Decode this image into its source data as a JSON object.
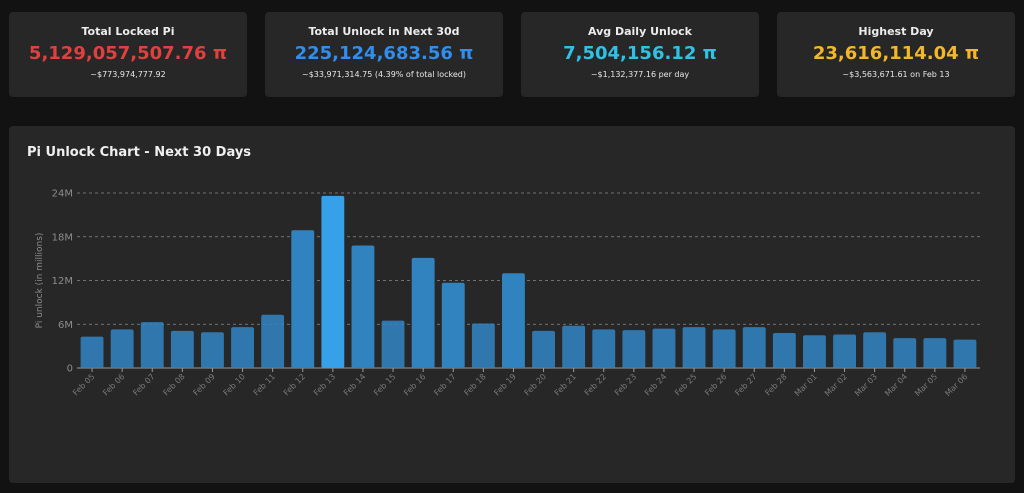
{
  "stats": [
    {
      "title": "Total Locked Pi",
      "value": "5,129,057,507.76 π",
      "sub": "~$773,974,777.92",
      "color": "#e0413f"
    },
    {
      "title": "Total Unlock in Next 30d",
      "value": "225,124,683.56 π",
      "sub": "~$33,971,314.75 (4.39% of total locked)",
      "color": "#2f8ff0"
    },
    {
      "title": "Avg Daily Unlock",
      "value": "7,504,156.12 π",
      "sub": "~$1,132,377.16 per day",
      "color": "#2ec3e6"
    },
    {
      "title": "Highest Day",
      "value": "23,616,114.04 π",
      "sub": "~$3,563,671.61 on Feb 13",
      "color": "#f5b72a"
    }
  ],
  "chart_title": "Pi Unlock Chart - Next 30 Days",
  "chart_data": {
    "type": "bar",
    "title": "Pi Unlock Chart - Next 30 Days",
    "xlabel": "",
    "ylabel": "Pi unlock (in millions)",
    "ylim": [
      0,
      24
    ],
    "yticks": [
      0,
      6,
      12,
      18,
      24
    ],
    "ytick_labels": [
      "0",
      "6M",
      "12M",
      "18M",
      "24M"
    ],
    "grid": true,
    "categories": [
      "Feb 05",
      "Feb 06",
      "Feb 07",
      "Feb 08",
      "Feb 09",
      "Feb 10",
      "Feb 11",
      "Feb 12",
      "Feb 13",
      "Feb 14",
      "Feb 15",
      "Feb 16",
      "Feb 17",
      "Feb 18",
      "Feb 19",
      "Feb 20",
      "Feb 21",
      "Feb 22",
      "Feb 23",
      "Feb 24",
      "Feb 25",
      "Feb 26",
      "Feb 27",
      "Feb 28",
      "Mar 01",
      "Mar 02",
      "Mar 03",
      "Mar 04",
      "Mar 05",
      "Mar 06"
    ],
    "values": [
      4.3,
      5.3,
      6.3,
      5.1,
      4.9,
      5.6,
      7.3,
      18.9,
      23.6,
      16.8,
      6.5,
      15.1,
      11.7,
      6.1,
      13.0,
      5.1,
      5.8,
      5.3,
      5.2,
      5.4,
      5.6,
      5.3,
      5.6,
      4.8,
      4.5,
      4.6,
      4.9,
      4.1,
      4.1,
      3.9
    ],
    "bar_color": "#3183c0",
    "highlight_color": "#36a0e8"
  }
}
